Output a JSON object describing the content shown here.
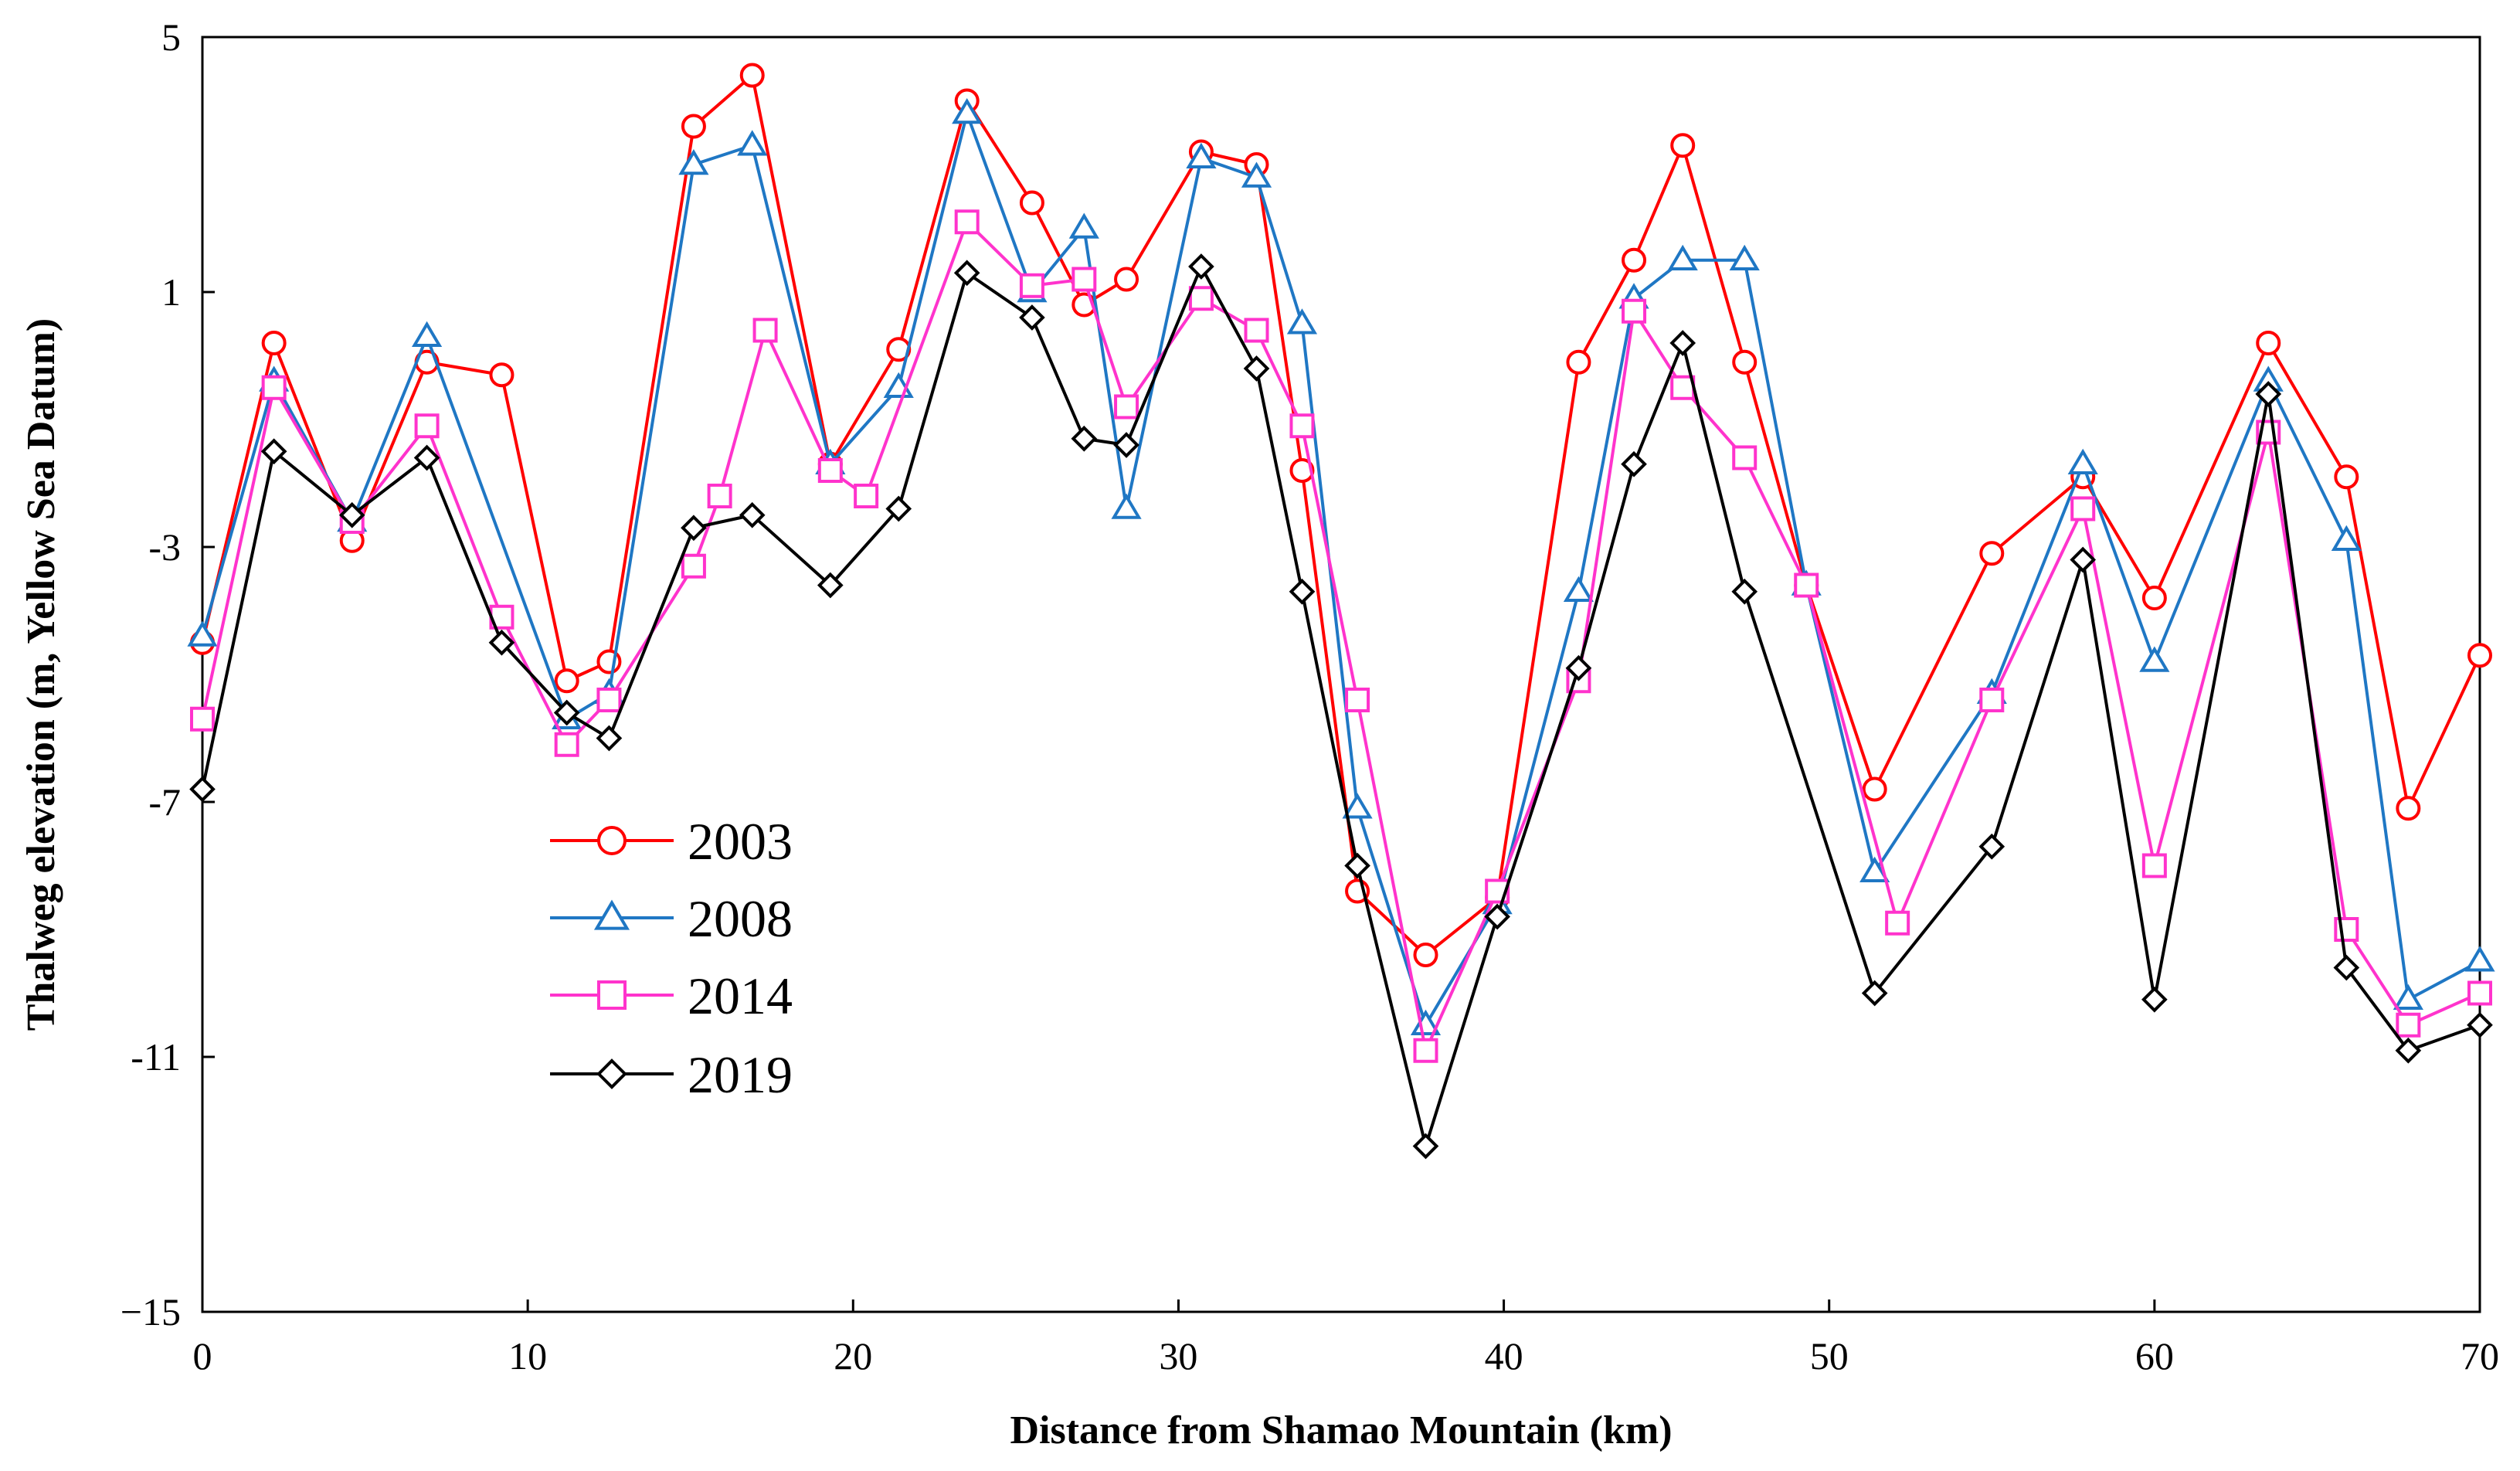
{
  "chart_data": {
    "type": "line",
    "title": "",
    "xlabel": "Distance from Shamao Mountain (km)",
    "ylabel": "Thalweg elevation (m, Yellow Sea Datum)",
    "xlim": [
      0,
      70
    ],
    "ylim": [
      -15,
      5
    ],
    "xticks": [
      0,
      10,
      20,
      30,
      40,
      50,
      60,
      70
    ],
    "yticks": [
      5,
      1,
      -3,
      -7,
      -11,
      -15
    ],
    "xtick_labels": [
      "0",
      "10",
      "20",
      "30",
      "40",
      "50",
      "60",
      "70"
    ],
    "ytick_labels": [
      "5",
      "1",
      "-3",
      "-7",
      "-11",
      "−15"
    ],
    "grid": false,
    "legend_position": "center-left",
    "series": [
      {
        "name": "2003",
        "color": "#ff0000",
        "marker": "circle",
        "x": [
          0,
          2.2,
          4.6,
          6.9,
          9.2,
          11.2,
          12.5,
          15.1,
          16.9,
          19.3,
          21.4,
          23.5,
          25.5,
          27.1,
          28.4,
          30.7,
          32.4,
          33.8,
          35.5,
          37.6,
          39.8,
          42.3,
          44.0,
          45.5,
          47.4,
          49.3,
          51.4,
          55.0,
          57.8,
          60.0,
          63.5,
          65.9,
          67.8,
          70.0
        ],
        "y": [
          -4.5,
          0.2,
          -2.9,
          -0.1,
          -0.3,
          -5.1,
          -4.8,
          3.6,
          4.4,
          -1.7,
          0.1,
          4.0,
          2.4,
          0.8,
          1.2,
          3.2,
          3.0,
          -1.8,
          -8.4,
          -9.4,
          -8.5,
          -0.1,
          1.5,
          3.3,
          -0.1,
          -3.6,
          -6.8,
          -3.1,
          -1.9,
          -3.8,
          0.2,
          -1.9,
          -7.1,
          -4.7
        ]
      },
      {
        "name": "2008",
        "color": "#1f77c4",
        "marker": "triangle",
        "x": [
          0,
          2.2,
          4.6,
          6.9,
          11.2,
          12.5,
          15.1,
          16.9,
          19.3,
          21.4,
          23.5,
          25.5,
          27.1,
          28.4,
          30.7,
          32.4,
          33.8,
          35.5,
          37.6,
          39.8,
          42.3,
          44.0,
          45.5,
          47.4,
          49.3,
          51.4,
          55.0,
          57.8,
          60.0,
          63.5,
          65.9,
          67.8,
          70.0
        ],
        "y": [
          -4.4,
          -0.4,
          -2.6,
          0.3,
          -5.7,
          -5.3,
          3.0,
          3.3,
          -1.7,
          -0.5,
          3.8,
          1.0,
          2.0,
          -2.4,
          3.1,
          2.8,
          0.5,
          -7.1,
          -10.5,
          -8.6,
          -3.7,
          0.9,
          1.5,
          1.5,
          -3.6,
          -8.1,
          -5.3,
          -1.7,
          -4.8,
          -0.4,
          -2.9,
          -10.1,
          -9.5
        ]
      },
      {
        "name": "2014",
        "color": "#ff33cc",
        "marker": "square",
        "x": [
          0,
          2.2,
          4.6,
          6.9,
          9.2,
          11.2,
          12.5,
          15.1,
          15.9,
          17.3,
          19.3,
          20.4,
          23.5,
          25.5,
          27.1,
          28.4,
          30.7,
          32.4,
          33.8,
          35.5,
          37.6,
          39.8,
          42.3,
          44.0,
          45.5,
          47.4,
          49.3,
          52.1,
          55.0,
          57.8,
          60.0,
          63.5,
          65.9,
          67.8,
          70.0
        ],
        "y": [
          -5.7,
          -0.5,
          -2.6,
          -1.1,
          -4.1,
          -6.1,
          -5.4,
          -3.3,
          -2.2,
          0.4,
          -1.8,
          -2.2,
          2.1,
          1.1,
          1.2,
          -0.8,
          0.9,
          0.4,
          -1.1,
          -5.4,
          -10.9,
          -8.4,
          -5.1,
          0.7,
          -0.5,
          -1.6,
          -3.6,
          -8.9,
          -5.4,
          -2.4,
          -8.0,
          -1.2,
          -9.0,
          -10.5,
          -10.0
        ]
      },
      {
        "name": "2019",
        "color": "#000000",
        "marker": "diamond",
        "x": [
          0,
          2.2,
          4.6,
          6.9,
          9.2,
          11.2,
          12.5,
          15.1,
          16.9,
          19.3,
          21.4,
          23.5,
          25.5,
          27.1,
          28.4,
          30.7,
          32.4,
          33.8,
          35.5,
          37.6,
          39.8,
          42.3,
          44.0,
          45.5,
          47.4,
          51.4,
          55.0,
          57.8,
          60.0,
          63.5,
          65.9,
          67.8,
          70.0
        ],
        "y": [
          -6.8,
          -1.5,
          -2.5,
          -1.6,
          -4.5,
          -5.6,
          -6.0,
          -2.7,
          -2.5,
          -3.6,
          -2.4,
          1.3,
          0.6,
          -1.3,
          -1.4,
          1.4,
          -0.2,
          -3.7,
          -8.0,
          -12.4,
          -8.8,
          -4.9,
          -1.7,
          0.2,
          -3.7,
          -10.0,
          -7.7,
          -3.2,
          -10.1,
          -0.6,
          -9.6,
          -10.9,
          -10.5
        ]
      }
    ]
  }
}
